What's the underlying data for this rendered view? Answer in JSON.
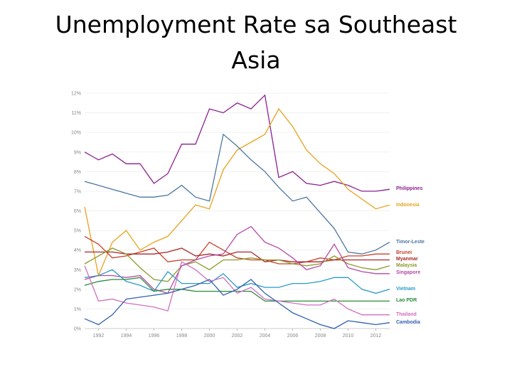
{
  "chart_data": {
    "type": "line",
    "title_lines": [
      "Unemployment Rate sa Southeast",
      "Asia"
    ],
    "x": [
      1991,
      1992,
      1993,
      1994,
      1995,
      1996,
      1997,
      1998,
      1999,
      2000,
      2001,
      2002,
      2003,
      2004,
      2005,
      2006,
      2007,
      2008,
      2009,
      2010,
      2011,
      2012,
      2013
    ],
    "xlim": [
      1991,
      2013
    ],
    "xticks": [
      1992,
      1994,
      1996,
      1998,
      2000,
      2002,
      2004,
      2006,
      2008,
      2010,
      2012
    ],
    "ylim": [
      0,
      12
    ],
    "yticks": [
      {
        "value": 0,
        "label": "0%"
      },
      {
        "value": 1,
        "label": "1%"
      },
      {
        "value": 2,
        "label": "2%"
      },
      {
        "value": 3,
        "label": "3%"
      },
      {
        "value": 4,
        "label": "4%"
      },
      {
        "value": 5,
        "label": "5%"
      },
      {
        "value": 6,
        "label": "6%"
      },
      {
        "value": 7,
        "label": "7%"
      },
      {
        "value": 8,
        "label": "8%"
      },
      {
        "value": 9,
        "label": "9%"
      },
      {
        "value": 10,
        "label": "10%"
      },
      {
        "value": 11,
        "label": "11%"
      },
      {
        "value": 12,
        "label": "12%"
      }
    ],
    "grid": true,
    "series": [
      {
        "name": "Philippines",
        "color": "#8b1f8f",
        "values": [
          9.0,
          8.6,
          8.9,
          8.4,
          8.4,
          7.4,
          7.9,
          9.4,
          9.4,
          11.2,
          11.0,
          11.5,
          11.2,
          11.9,
          7.7,
          8.0,
          7.4,
          7.3,
          7.5,
          7.3,
          7.0,
          7.0,
          7.1
        ]
      },
      {
        "name": "Indonesia",
        "color": "#e8a21e",
        "values": [
          6.2,
          2.7,
          4.4,
          5.0,
          4.0,
          4.4,
          4.7,
          5.5,
          6.3,
          6.1,
          8.1,
          9.1,
          9.5,
          9.9,
          11.2,
          10.3,
          9.1,
          8.4,
          7.9,
          7.1,
          6.6,
          6.1,
          6.3
        ]
      },
      {
        "name": "Timor-Leste",
        "color": "#4a76a0",
        "values": [
          7.5,
          7.3,
          7.1,
          6.9,
          6.7,
          6.7,
          6.8,
          7.3,
          6.7,
          6.5,
          9.9,
          9.3,
          8.6,
          8.0,
          7.2,
          6.5,
          6.7,
          5.9,
          5.1,
          3.9,
          3.8,
          4.0,
          4.4
        ]
      },
      {
        "name": "Brunei",
        "color": "#c8402a",
        "values": [
          4.7,
          4.3,
          3.6,
          3.7,
          3.9,
          4.1,
          3.4,
          3.5,
          3.5,
          4.4,
          4.0,
          3.6,
          3.5,
          3.5,
          3.3,
          3.3,
          3.4,
          3.6,
          3.5,
          3.7,
          3.7,
          3.8,
          3.8
        ]
      },
      {
        "name": "Myanmar",
        "color": "#a8282a",
        "values": [
          3.9,
          3.9,
          3.9,
          3.8,
          3.8,
          3.8,
          3.9,
          4.1,
          3.7,
          3.8,
          3.7,
          3.9,
          3.9,
          3.4,
          3.5,
          3.4,
          3.4,
          3.4,
          3.5,
          3.5,
          3.5,
          3.5,
          3.5
        ]
      },
      {
        "name": "Malaysia",
        "color": "#8c9a2a",
        "values": [
          3.3,
          3.7,
          4.1,
          3.8,
          3.1,
          2.5,
          2.4,
          3.2,
          3.4,
          3.0,
          3.5,
          3.5,
          3.6,
          3.5,
          3.5,
          3.3,
          3.2,
          3.3,
          3.7,
          3.3,
          3.1,
          3.0,
          3.2
        ]
      },
      {
        "name": "Singapore",
        "color": "#b44aa8",
        "values": [
          2.5,
          2.7,
          2.7,
          2.6,
          2.7,
          2.0,
          1.8,
          3.2,
          3.5,
          3.7,
          3.8,
          4.8,
          5.2,
          4.4,
          4.1,
          3.6,
          3.0,
          3.2,
          4.3,
          3.1,
          2.9,
          2.8,
          2.8
        ]
      },
      {
        "name": "Vietnam",
        "color": "#2a9ac8",
        "values": [
          2.6,
          2.7,
          3.0,
          2.4,
          2.2,
          1.9,
          2.9,
          2.3,
          2.3,
          2.3,
          2.8,
          2.1,
          2.3,
          2.1,
          2.1,
          2.3,
          2.3,
          2.4,
          2.6,
          2.6,
          2.0,
          1.8,
          2.0
        ]
      },
      {
        "name": "Lao PDR",
        "color": "#2a8a3a",
        "values": [
          2.2,
          2.4,
          2.5,
          2.5,
          2.6,
          1.9,
          2.0,
          2.0,
          1.9,
          1.9,
          1.9,
          1.9,
          1.9,
          1.4,
          1.4,
          1.4,
          1.4,
          1.4,
          1.4,
          1.4,
          1.4,
          1.4,
          1.4
        ]
      },
      {
        "name": "Thailand",
        "color": "#d070c0",
        "values": [
          3.2,
          1.4,
          1.5,
          1.3,
          1.2,
          1.1,
          0.9,
          3.4,
          3.0,
          2.4,
          2.6,
          1.8,
          2.1,
          1.5,
          1.4,
          1.3,
          1.2,
          1.2,
          1.5,
          1.0,
          0.7,
          0.7,
          0.7
        ]
      },
      {
        "name": "Cambodia",
        "color": "#3060b0",
        "values": [
          0.5,
          0.2,
          0.7,
          1.5,
          1.6,
          1.7,
          1.8,
          2.0,
          2.2,
          2.5,
          1.7,
          2.0,
          2.5,
          1.8,
          1.3,
          0.8,
          0.5,
          0.2,
          0.0,
          0.4,
          0.3,
          0.2,
          0.3
        ]
      }
    ]
  }
}
